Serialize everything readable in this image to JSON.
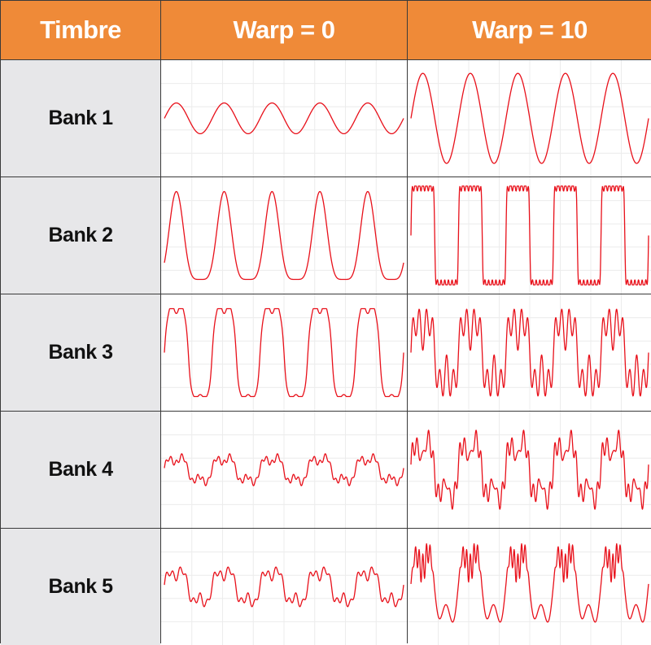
{
  "header": {
    "col_label": "Timbre",
    "warp0": "Warp = 0",
    "warp10": "Warp = 10"
  },
  "colors": {
    "header_bg": "#ef8a38",
    "label_bg": "#e7e7e9",
    "wave": "#e8101a",
    "grid_line": "#ececec"
  },
  "rows": [
    {
      "label": "Bank 1",
      "warp0_wave": "sine",
      "warp10_wave": "sine-large"
    },
    {
      "label": "Bank 2",
      "warp0_wave": "pulse-rounded",
      "warp10_wave": "square-ringing"
    },
    {
      "label": "Bank 3",
      "warp0_wave": "square-notched",
      "warp10_wave": "double-spike"
    },
    {
      "label": "Bank 4",
      "warp0_wave": "stepped-low",
      "warp10_wave": "stepped-peaked"
    },
    {
      "label": "Bank 5",
      "warp0_wave": "stepped-mid",
      "warp10_wave": "spiky-burst"
    }
  ]
}
